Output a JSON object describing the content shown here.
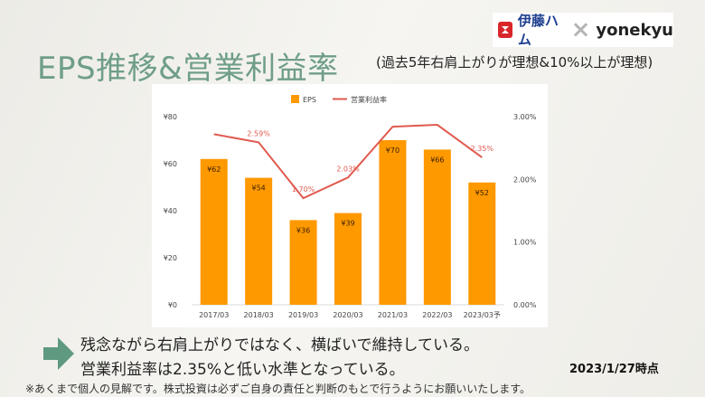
{
  "header": {
    "title": "EPS推移&営業利益率",
    "subtitle": "(過去5年右肩上がりが理想&10%以上が理想)"
  },
  "logos": {
    "left_brand": "伊藤ハム",
    "separator": "×",
    "right_brand": "yonekyu"
  },
  "chart_data": {
    "type": "bar",
    "categories": [
      "2017/03",
      "2018/03",
      "2019/03",
      "2020/03",
      "2021/03",
      "2022/03",
      "2023/03予"
    ],
    "series": [
      {
        "name": "EPS",
        "type": "bar",
        "axis": "left",
        "color": "#ff9900",
        "values": [
          62,
          54,
          36,
          39,
          70,
          66,
          52
        ],
        "labels": [
          "¥62",
          "¥54",
          "¥36",
          "¥39",
          "¥70",
          "¥66",
          "¥52"
        ]
      },
      {
        "name": "営業利益率",
        "type": "line",
        "axis": "right",
        "color": "#e05a4f",
        "values": [
          2.72,
          2.59,
          1.7,
          2.03,
          2.84,
          2.87,
          2.35
        ],
        "labels": [
          "",
          "2.59%",
          "1.70%",
          "2.03%",
          "",
          "",
          "2.35%"
        ]
      }
    ],
    "y_left": {
      "range": [
        0,
        80
      ],
      "ticks": [
        "¥0",
        "¥20",
        "¥40",
        "¥60",
        "¥80"
      ]
    },
    "y_right": {
      "range": [
        0,
        3
      ],
      "ticks": [
        "0.00%",
        "1.00%",
        "2.00%",
        "3.00%"
      ]
    },
    "legend": {
      "position": "top",
      "items": [
        "EPS",
        "営業利益率"
      ]
    },
    "grid": false
  },
  "summary": {
    "line1": "残念ながら右肩上がりではなく、横ばいで維持している。",
    "line2": "営業利益率は2.35%と低い水準となっている。"
  },
  "date_note": "2023/1/27時点",
  "disclaimer": "※あくまで個人の見解です。株式投資は必ずご自身の責任と判断のもとで行うようにお願いいたします。",
  "colors": {
    "title": "#6f9e87",
    "arrow": "#5f9a80",
    "bar": "#ff9900",
    "line": "#e05a4f"
  }
}
